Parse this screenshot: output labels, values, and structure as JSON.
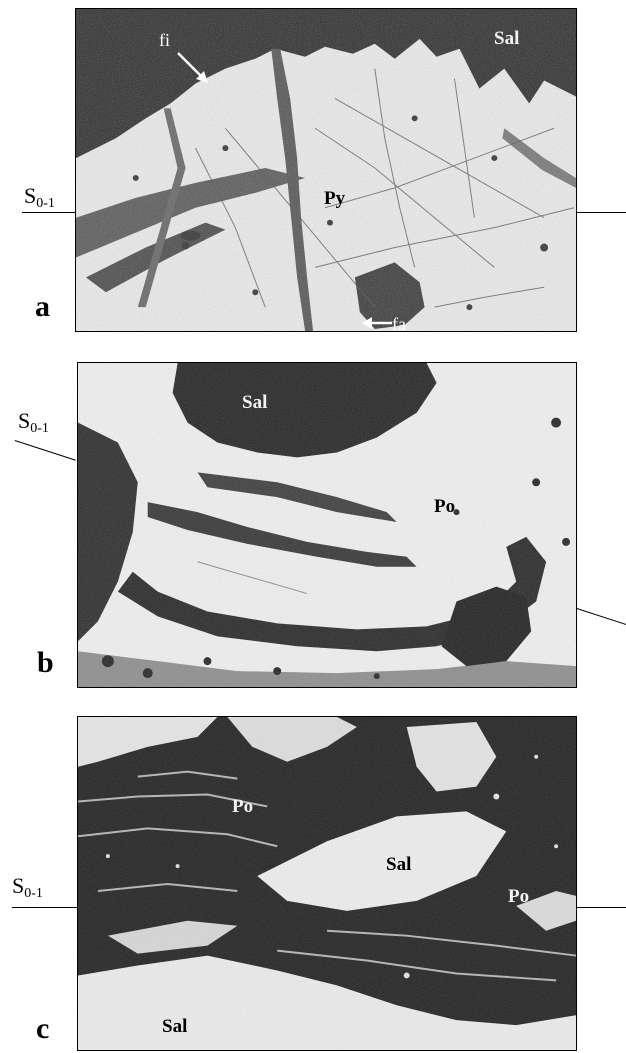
{
  "panels": [
    {
      "letter": "a",
      "s_label": {
        "main": "S",
        "sub": "0-1"
      },
      "minerals": {
        "sal": "Sal",
        "py": "Py"
      },
      "annotations": {
        "fi": "fi",
        "fa": "fa"
      }
    },
    {
      "letter": "b",
      "s_label": {
        "main": "S",
        "sub": "0-1"
      },
      "minerals": {
        "sal": "Sal",
        "po": "Po"
      }
    },
    {
      "letter": "c",
      "s_label": {
        "main": "S",
        "sub": "0-1"
      },
      "minerals": {
        "po_left": "Po",
        "sal_center": "Sal",
        "po_right": "Po",
        "sal_bottom": "Sal"
      }
    }
  ],
  "colors": {
    "background": "#ffffff",
    "dark_phase": "#262626",
    "mid_phase": "#6a6a6a",
    "bright_phase": "#f0f0f0"
  }
}
